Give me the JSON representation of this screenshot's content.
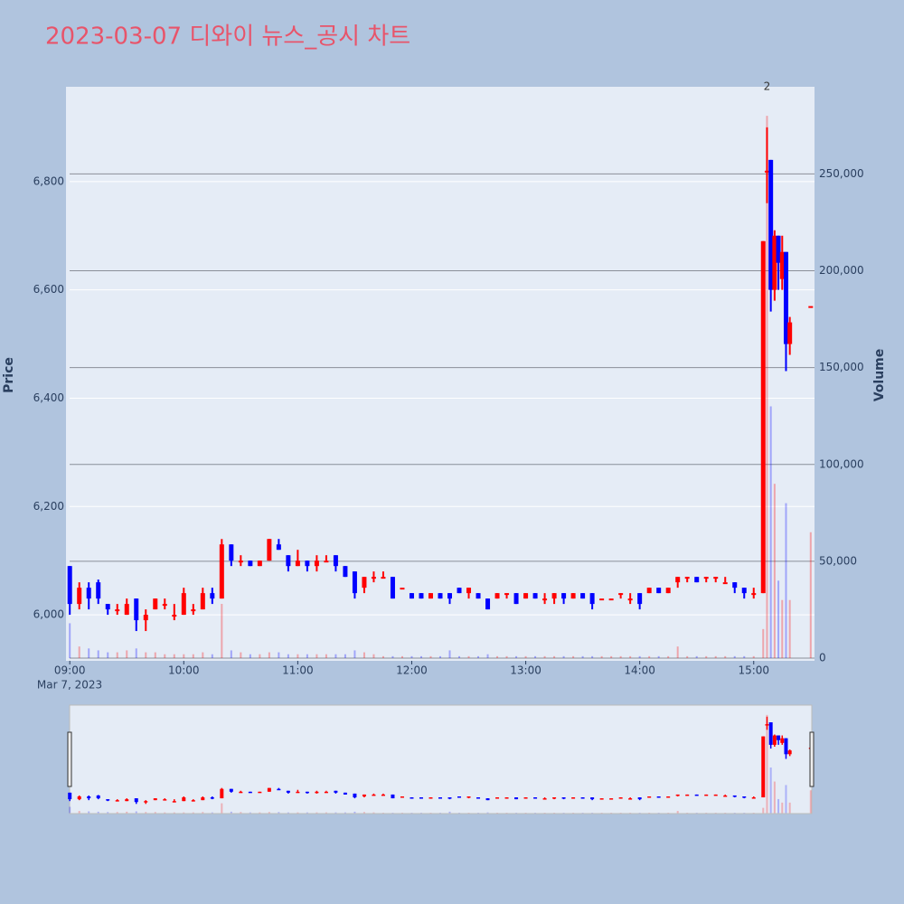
{
  "chart_data": {
    "type": "candlestick",
    "title": "2023-03-07 디와이 뉴스_공시 차트",
    "x": [
      "09:00",
      "09:05",
      "09:10",
      "09:15",
      "09:20",
      "09:25",
      "09:30",
      "09:35",
      "09:40",
      "09:45",
      "09:50",
      "09:55",
      "10:00",
      "10:05",
      "10:10",
      "10:15",
      "10:20",
      "10:25",
      "10:30",
      "10:35",
      "10:40",
      "10:45",
      "10:50",
      "10:55",
      "11:00",
      "11:05",
      "11:10",
      "11:15",
      "11:20",
      "11:25",
      "11:30",
      "11:35",
      "11:40",
      "11:45",
      "11:50",
      "11:55",
      "12:00",
      "12:05",
      "12:10",
      "12:15",
      "12:20",
      "12:25",
      "12:30",
      "12:35",
      "12:40",
      "12:45",
      "12:50",
      "12:55",
      "13:00",
      "13:05",
      "13:10",
      "13:15",
      "13:20",
      "13:25",
      "13:30",
      "13:35",
      "13:40",
      "13:45",
      "13:50",
      "13:55",
      "14:00",
      "14:05",
      "14:10",
      "14:15",
      "14:20",
      "14:25",
      "14:30",
      "14:35",
      "14:40",
      "14:45",
      "14:50",
      "14:55",
      "15:00",
      "15:05",
      "15:07",
      "15:09",
      "15:11",
      "15:13",
      "15:15",
      "15:17",
      "15:19",
      "15:30"
    ],
    "open": [
      6090,
      6020,
      6050,
      6060,
      6020,
      6010,
      6000,
      6030,
      5990,
      6010,
      6020,
      6000,
      6000,
      6010,
      6010,
      6040,
      6030,
      6130,
      6100,
      6100,
      6090,
      6100,
      6130,
      6110,
      6090,
      6100,
      6090,
      6100,
      6110,
      6090,
      6080,
      6050,
      6070,
      6070,
      6070,
      6050,
      6040,
      6040,
      6030,
      6040,
      6040,
      6050,
      6040,
      6040,
      6030,
      6030,
      6040,
      6040,
      6030,
      6040,
      6030,
      6030,
      6040,
      6030,
      6040,
      6040,
      6030,
      6030,
      6040,
      6030,
      6040,
      6040,
      6050,
      6040,
      6060,
      6070,
      6070,
      6070,
      6070,
      6060,
      6060,
      6050,
      6040,
      6040,
      6820,
      6840,
      6600,
      6700,
      6620,
      6670,
      6500,
      6570
    ],
    "high": [
      6090,
      6060,
      6060,
      6065,
      6020,
      6020,
      6030,
      6030,
      6010,
      6030,
      6030,
      6020,
      6050,
      6020,
      6050,
      6050,
      6140,
      6130,
      6110,
      6100,
      6100,
      6140,
      6140,
      6110,
      6120,
      6100,
      6110,
      6110,
      6110,
      6090,
      6080,
      6070,
      6080,
      6080,
      6070,
      6050,
      6040,
      6040,
      6040,
      6040,
      6040,
      6050,
      6050,
      6040,
      6030,
      6040,
      6040,
      6040,
      6040,
      6040,
      6040,
      6040,
      6040,
      6040,
      6040,
      6040,
      6030,
      6030,
      6040,
      6040,
      6040,
      6050,
      6050,
      6050,
      6070,
      6070,
      6070,
      6070,
      6070,
      6070,
      6060,
      6050,
      6050,
      6690,
      6900,
      6840,
      6710,
      6700,
      6700,
      6670,
      6550,
      6570
    ],
    "low": [
      6000,
      6010,
      6010,
      6020,
      6000,
      6000,
      6000,
      5970,
      5970,
      6010,
      6010,
      5990,
      6000,
      6000,
      6010,
      6020,
      6030,
      6090,
      6090,
      6090,
      6090,
      6100,
      6120,
      6080,
      6090,
      6080,
      6080,
      6100,
      6080,
      6070,
      6030,
      6040,
      6060,
      6070,
      6030,
      6050,
      6030,
      6030,
      6030,
      6030,
      6020,
      6040,
      6030,
      6030,
      6010,
      6030,
      6030,
      6020,
      6030,
      6030,
      6020,
      6020,
      6020,
      6030,
      6030,
      6010,
      6030,
      6030,
      6030,
      6020,
      6010,
      6040,
      6040,
      6040,
      6050,
      6060,
      6060,
      6060,
      6060,
      6060,
      6040,
      6030,
      6030,
      6040,
      6760,
      6560,
      6580,
      6600,
      6600,
      6450,
      6480,
      6570
    ],
    "close": [
      6020,
      6050,
      6030,
      6030,
      6010,
      6010,
      6020,
      5990,
      6000,
      6030,
      6020,
      6000,
      6040,
      6010,
      6040,
      6030,
      6130,
      6100,
      6100,
      6090,
      6100,
      6140,
      6120,
      6090,
      6100,
      6090,
      6100,
      6100,
      6090,
      6070,
      6040,
      6070,
      6070,
      6070,
      6030,
      6050,
      6030,
      6030,
      6040,
      6030,
      6030,
      6040,
      6050,
      6030,
      6010,
      6040,
      6040,
      6020,
      6040,
      6030,
      6030,
      6040,
      6030,
      6040,
      6030,
      6020,
      6030,
      6030,
      6040,
      6030,
      6020,
      6050,
      6040,
      6050,
      6070,
      6070,
      6060,
      6070,
      6070,
      6060,
      6050,
      6040,
      6040,
      6690,
      6820,
      6600,
      6700,
      6650,
      6670,
      6500,
      6540,
      6570
    ],
    "volume": [
      18000,
      6000,
      5000,
      4000,
      3000,
      3000,
      4000,
      5000,
      3000,
      3000,
      2000,
      2000,
      2000,
      2000,
      3000,
      2000,
      28000,
      4000,
      3000,
      2000,
      2000,
      3000,
      3000,
      2000,
      2000,
      2000,
      2000,
      2000,
      2000,
      2000,
      4000,
      3000,
      2000,
      1000,
      1000,
      1000,
      1000,
      1000,
      1000,
      1000,
      4000,
      1000,
      1000,
      1000,
      2000,
      1000,
      1000,
      1000,
      1000,
      1000,
      1000,
      1000,
      1000,
      1000,
      1000,
      1000,
      1000,
      1000,
      1000,
      1000,
      1000,
      1000,
      1000,
      1000,
      6000,
      1000,
      1000,
      1000,
      1000,
      1000,
      1000,
      1000,
      1000,
      15000,
      280000,
      130000,
      90000,
      40000,
      30000,
      80000,
      30000,
      65000
    ],
    "increasing_color": "#ff0000",
    "decreasing_color": "#0000ff",
    "xlim": [
      "08:58",
      "15:32"
    ],
    "xticks": [
      "09:00",
      "10:00",
      "11:00",
      "12:00",
      "13:00",
      "14:00",
      "15:00"
    ],
    "x_date_label": "Mar 7, 2023",
    "ylabel": "Price",
    "y2label": "Volume",
    "ylim": [
      5915,
      6975
    ],
    "yticks": [
      {
        "value": 6000,
        "label": "6,000"
      },
      {
        "value": 6200,
        "label": "6,200"
      },
      {
        "value": 6400,
        "label": "6,400"
      },
      {
        "value": 6600,
        "label": "6,600"
      },
      {
        "value": 6800,
        "label": "6,800"
      }
    ],
    "y2lim": [
      -1400,
      295000
    ],
    "y2ticks": [
      0,
      {
        "value": 50000,
        "label": "50,000"
      },
      {
        "value": 100000,
        "label": "100,000"
      },
      {
        "value": 150000,
        "label": "150,000"
      },
      {
        "value": 200000,
        "label": "200,000"
      },
      {
        "value": 250000,
        "label": "250,000"
      }
    ],
    "annotation": {
      "x": "15:07",
      "text": "2"
    },
    "grid": true
  }
}
